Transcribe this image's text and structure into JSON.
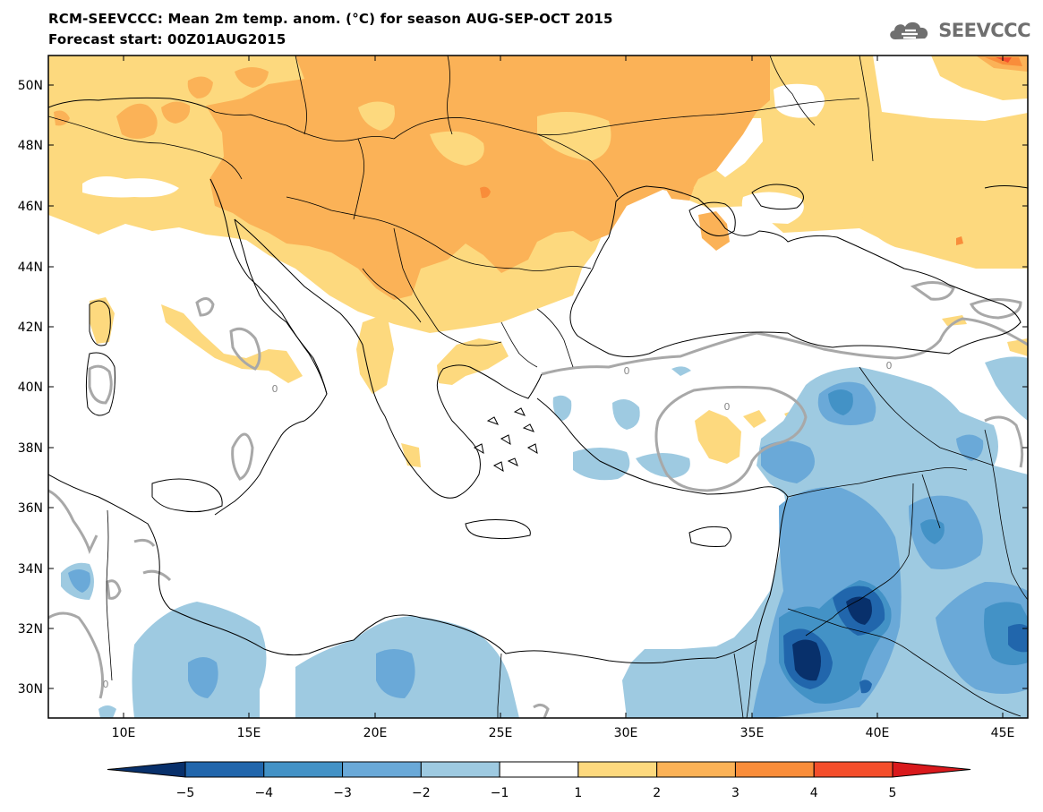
{
  "header": {
    "title": "RCM-SEEVCCC: Mean 2m temp. anom. (°C) for season AUG-SEP-OCT 2015",
    "subtitle": "Forecast start: 00Z01AUG2015"
  },
  "logo": {
    "text": "SEEVCCC",
    "icon": "cloud-icon"
  },
  "axes": {
    "lat_labels": [
      "50N",
      "48N",
      "46N",
      "44N",
      "42N",
      "40N",
      "38N",
      "36N",
      "34N",
      "32N",
      "30N"
    ],
    "lon_labels": [
      "10E",
      "15E",
      "20E",
      "25E",
      "30E",
      "35E",
      "40E",
      "45E"
    ],
    "contour_label": "0"
  },
  "colorbar": {
    "labels": [
      "−5",
      "−4",
      "−3",
      "−2",
      "−1",
      "1",
      "2",
      "3",
      "4",
      "5"
    ],
    "colors": [
      "#08306b",
      "#2166ac",
      "#4392c6",
      "#6aa9d8",
      "#9ecae1",
      "#ffffff",
      "#fdd97e",
      "#fbb257",
      "#f98d3a",
      "#f44e2b",
      "#d9191c"
    ]
  },
  "palette": {
    "warm1": "#fdd97e",
    "warm2": "#fbb257",
    "warm3": "#f98d3a",
    "warm5": "#f44e2b",
    "cold1": "#9ecae1",
    "cold2": "#6aa9d8",
    "cold3": "#4392c6",
    "cold4": "#2166ac",
    "cold5": "#08306b",
    "zero_contour": "#a8a8a8"
  }
}
